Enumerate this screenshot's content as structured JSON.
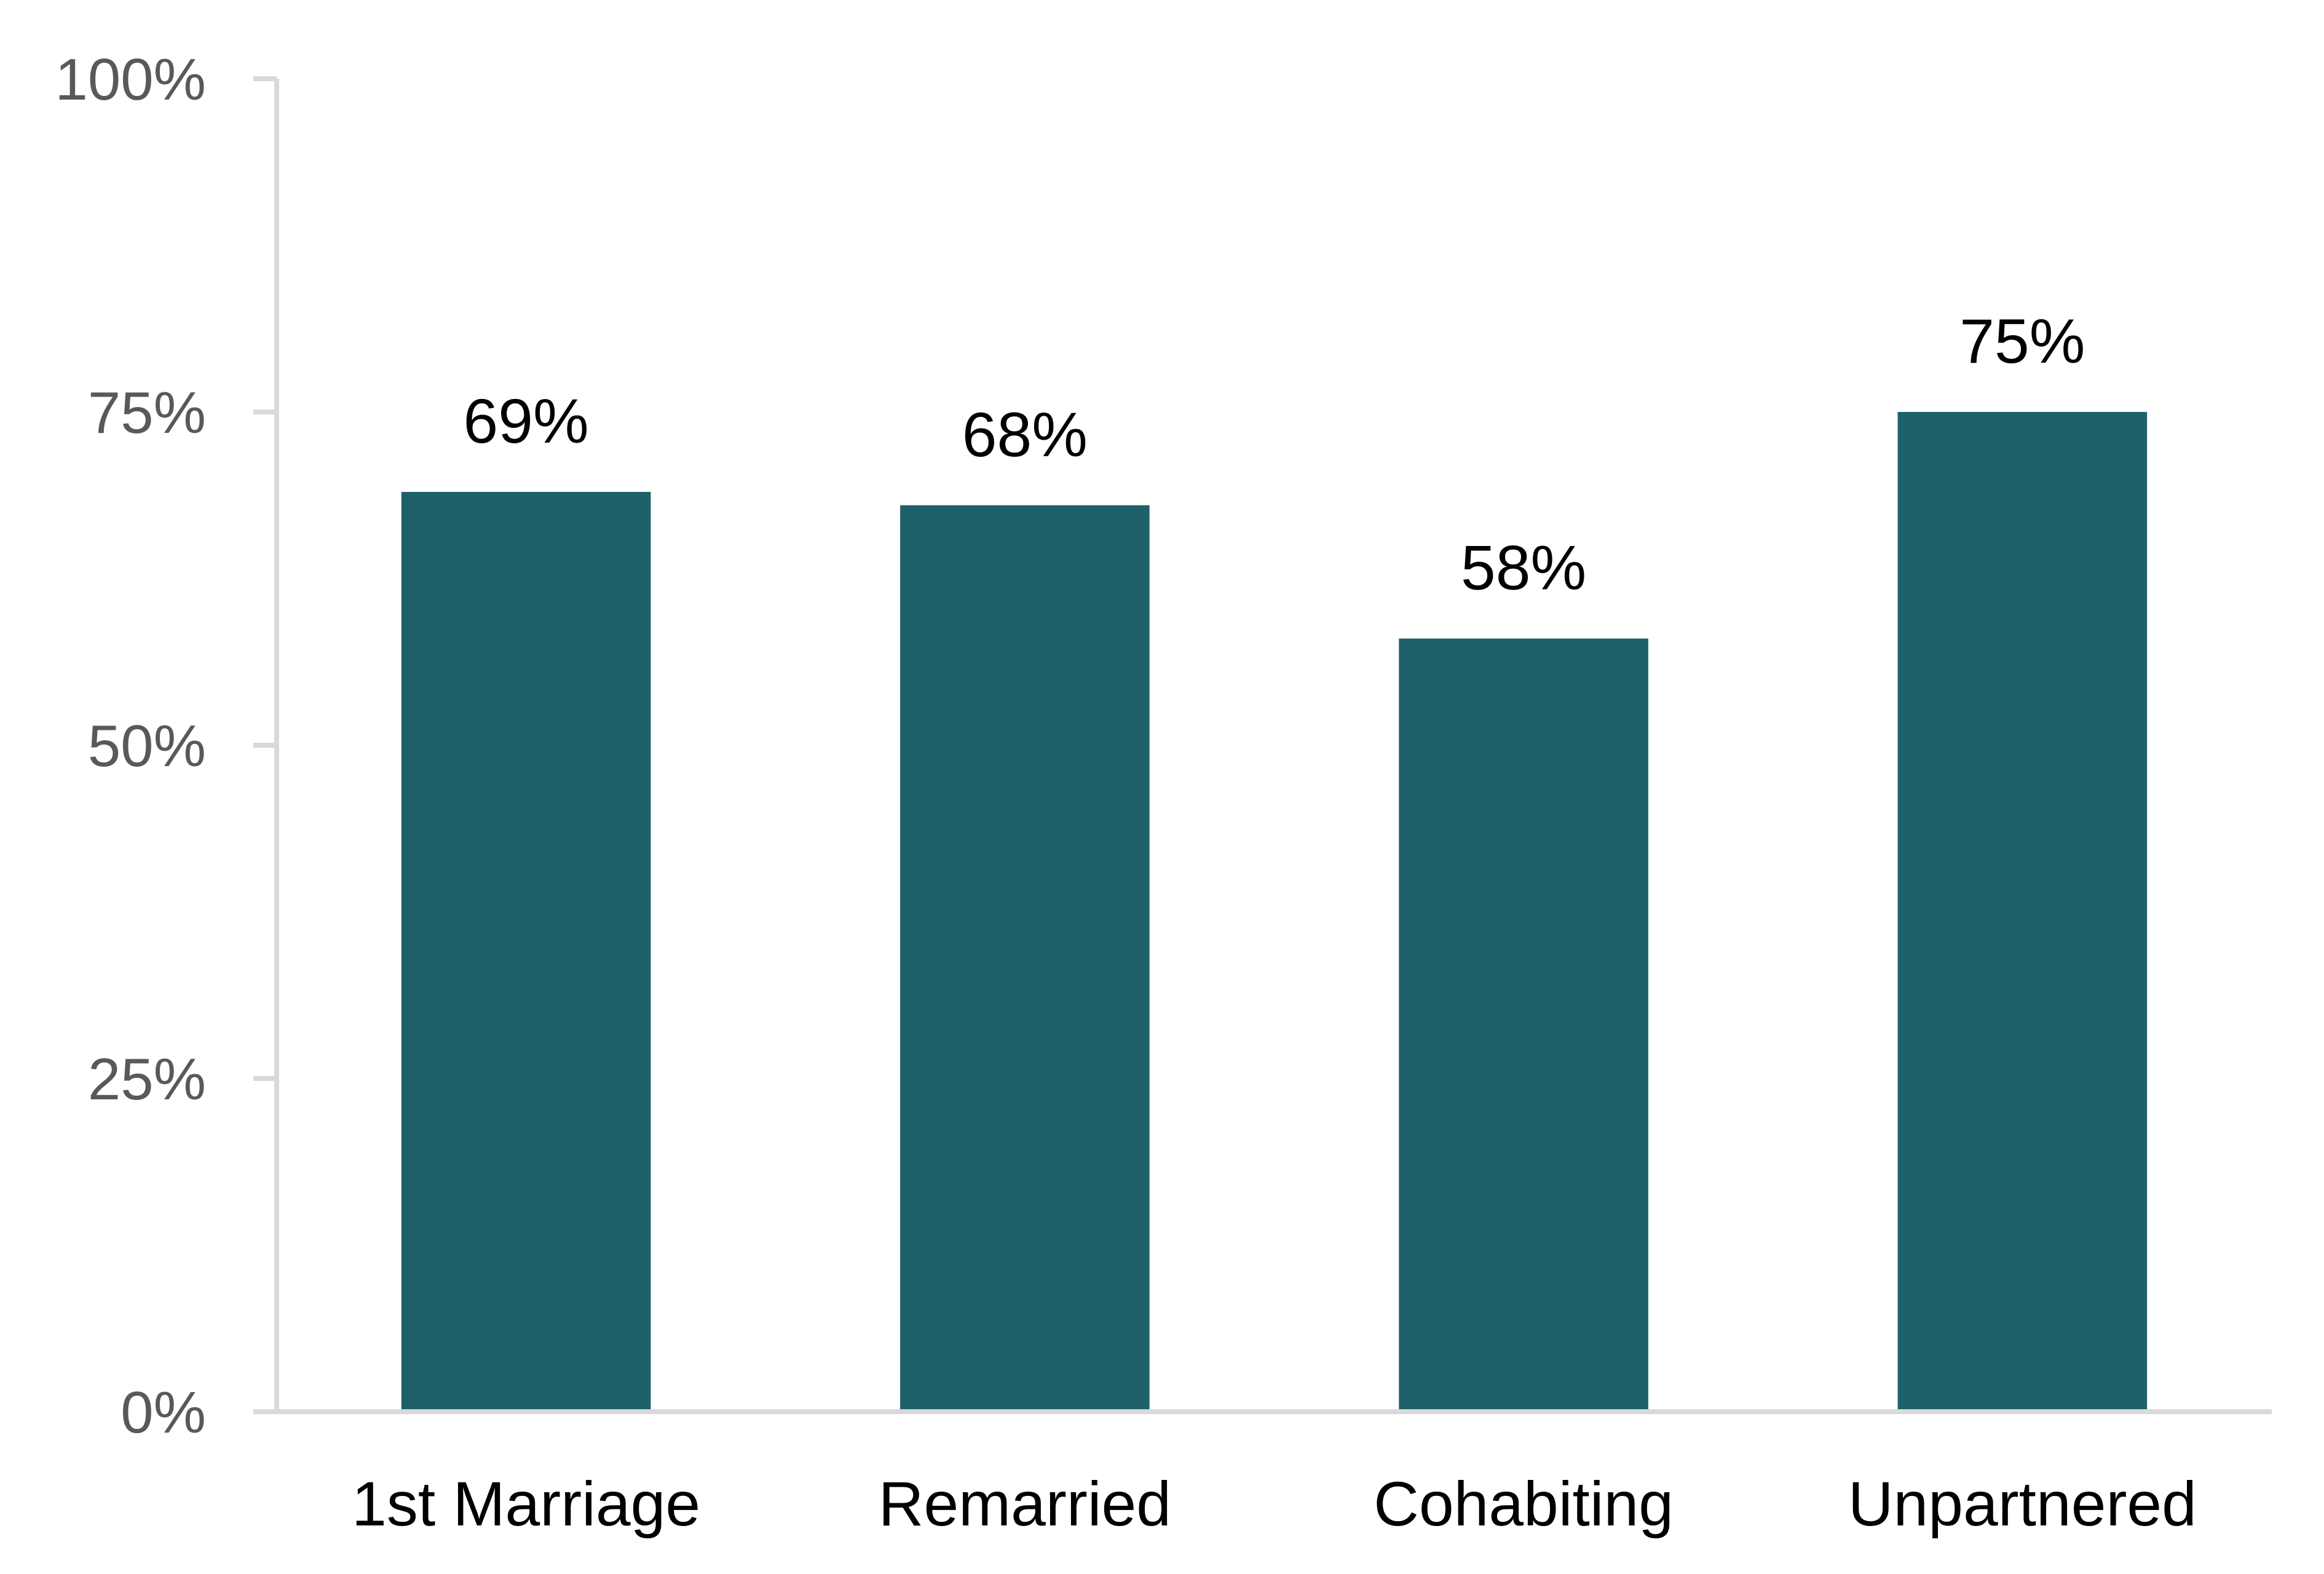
{
  "chart_data": {
    "type": "bar",
    "categories": [
      "1st Marriage",
      "Remarried",
      "Cohabiting",
      "Unpartnered"
    ],
    "values": [
      69,
      68,
      58,
      75
    ],
    "value_labels": [
      "69%",
      "68%",
      "58%",
      "75%"
    ],
    "title": "",
    "xlabel": "",
    "ylabel": "",
    "ylim": [
      0,
      100
    ],
    "y_ticks": [
      0,
      25,
      50,
      75,
      100
    ],
    "y_tick_labels": [
      "0%",
      "25%",
      "50%",
      "75%",
      "100%"
    ],
    "grid": false,
    "legend": "none",
    "colors": {
      "bar": "#1e616b",
      "axis": "#d9d9d9",
      "tick_text": "#595959",
      "label_text": "#000000"
    }
  }
}
